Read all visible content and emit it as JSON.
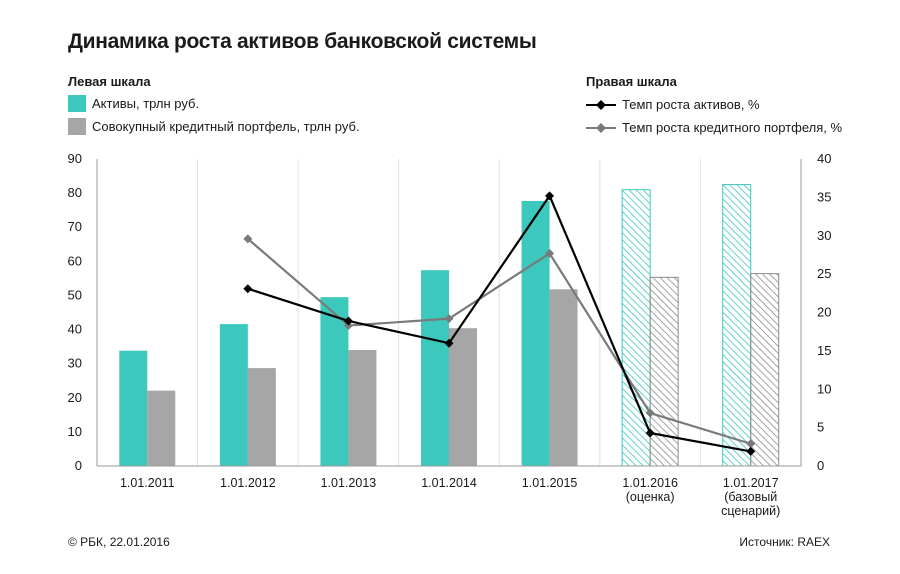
{
  "header": {
    "title": "Динамика роста активов банковской системы"
  },
  "legend": {
    "left_title": "Левая шкала",
    "right_title": "Правая шкала",
    "assets_label": "Активы, трлн руб.",
    "credit_label": "Совокупный кредитный портфель, трлн руб.",
    "assets_growth_label": "Темп роста активов, %",
    "credit_growth_label": "Темп роста кредитного портфеля, %"
  },
  "footer": {
    "copyright": "© РБК, 22.01.2016",
    "source": "Источник: RAEX"
  },
  "colors": {
    "assets": "#3cc8bc",
    "credit": "#a6a6a6",
    "assets_growth": "#000000",
    "credit_growth": "#7a7a7a"
  },
  "chart_data": {
    "type": "bar",
    "title": "Динамика роста активов банковской системы",
    "categories": [
      [
        "1.01.2011"
      ],
      [
        "1.01.2012"
      ],
      [
        "1.01.2013"
      ],
      [
        "1.01.2014"
      ],
      [
        "1.01.2015"
      ],
      [
        "1.01.2016",
        "(оценка)"
      ],
      [
        "1.01.2017",
        "(базовый",
        "сценарий)"
      ]
    ],
    "forecast_from_index": 5,
    "left_axis": {
      "ylim": [
        0,
        90
      ],
      "ticks": [
        0,
        10,
        20,
        30,
        40,
        50,
        60,
        70,
        80,
        90
      ]
    },
    "right_axis": {
      "ylim": [
        0,
        40
      ],
      "ticks": [
        0,
        5,
        10,
        15,
        20,
        25,
        30,
        35,
        40
      ]
    },
    "series": [
      {
        "name": "Активы, трлн руб.",
        "type": "bar",
        "axis": "left",
        "values": [
          33.8,
          41.6,
          49.5,
          57.4,
          77.7,
          81.0,
          82.5
        ]
      },
      {
        "name": "Совокупный кредитный портфель, трлн руб.",
        "type": "bar",
        "axis": "left",
        "values": [
          22.1,
          28.7,
          34.0,
          40.4,
          51.8,
          55.3,
          56.4
        ]
      },
      {
        "name": "Темп роста активов, %",
        "type": "line",
        "axis": "right",
        "marker": "diamond",
        "values": [
          null,
          23.1,
          18.9,
          16.0,
          35.2,
          4.3,
          1.9
        ]
      },
      {
        "name": "Темп роста кредитного портфеля, %",
        "type": "line",
        "axis": "right",
        "marker": "diamond",
        "values": [
          null,
          29.6,
          18.3,
          19.2,
          27.7,
          6.9,
          2.9
        ]
      }
    ]
  }
}
